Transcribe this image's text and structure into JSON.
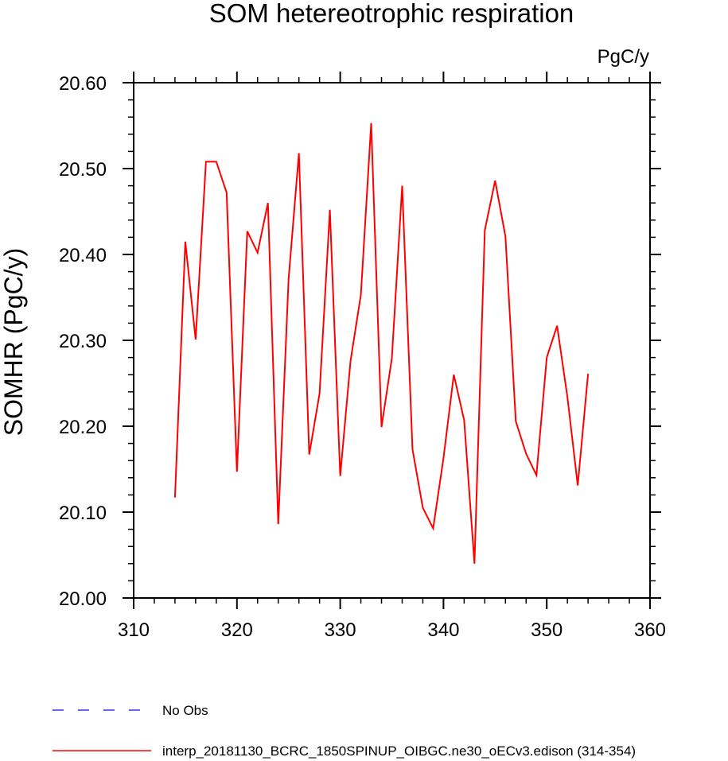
{
  "chart_data": {
    "type": "line",
    "title": "SOM hetereotrophic respiration",
    "units": "PgC/y",
    "ylabel": "SOMHR  (PgC/y)",
    "xlabel": "",
    "xlim": [
      310,
      360
    ],
    "ylim": [
      20.0,
      20.6
    ],
    "x_ticks": [
      "310",
      "320",
      "330",
      "340",
      "350",
      "360"
    ],
    "y_ticks": [
      "20.00",
      "20.10",
      "20.20",
      "20.30",
      "20.40",
      "20.50",
      "20.60"
    ],
    "grid": false,
    "legend_position": "bottom-left",
    "series": [
      {
        "name": "interp_20181130_BCRC_1850SPINUP_OIBGC.ne30_oECv3.edison (314-354)",
        "color": "#ff0000",
        "style": "solid",
        "x": [
          314,
          315,
          316,
          317,
          318,
          319,
          320,
          321,
          322,
          323,
          324,
          325,
          326,
          327,
          328,
          329,
          330,
          331,
          332,
          333,
          334,
          335,
          336,
          337,
          338,
          339,
          340,
          341,
          342,
          343,
          344,
          345,
          346,
          347,
          348,
          349,
          350,
          351,
          352,
          353,
          354
        ],
        "y": [
          20.117,
          20.415,
          20.301,
          20.508,
          20.508,
          20.472,
          20.147,
          20.427,
          20.402,
          20.46,
          20.086,
          20.371,
          20.518,
          20.167,
          20.238,
          20.452,
          20.142,
          20.276,
          20.353,
          20.553,
          20.199,
          20.279,
          20.48,
          20.173,
          20.105,
          20.081,
          20.163,
          20.26,
          20.207,
          20.04,
          20.428,
          20.486,
          20.421,
          20.206,
          20.168,
          20.143,
          20.28,
          20.317,
          20.234,
          20.131,
          20.261
        ]
      }
    ],
    "legend": [
      {
        "label": "No Obs",
        "color": "#3333ff",
        "style": "dashed"
      },
      {
        "label": "interp_20181130_BCRC_1850SPINUP_OIBGC.ne30_oECv3.edison (314-354)",
        "color": "#ff0000",
        "style": "solid"
      }
    ]
  }
}
